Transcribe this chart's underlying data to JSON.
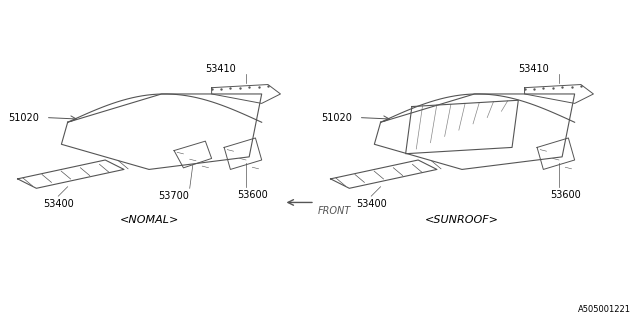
{
  "title": "",
  "bg_color": "#ffffff",
  "diagram_id": "A505001221",
  "labels": {
    "normal": "<NOMAL>",
    "sunroof": "<SUNROOF>",
    "front": "FRONT"
  },
  "text_color": "#000000",
  "line_color": "#555555",
  "font_size_parts": 7,
  "font_size_labels": 8
}
